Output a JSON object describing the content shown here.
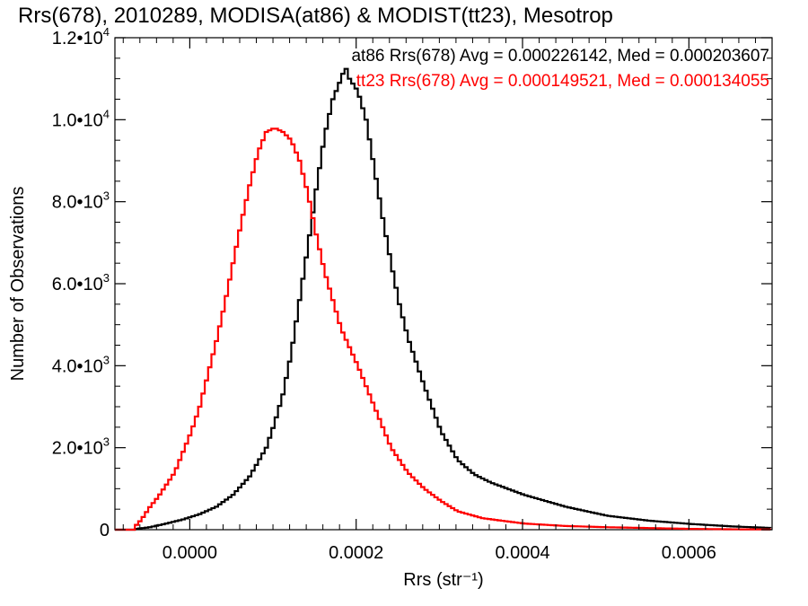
{
  "chart_data": {
    "type": "line",
    "step": true,
    "title": "Rrs(678), 2010289, MODISA(at86) & MODIST(tt23), Mesotrop",
    "xlabel": "Rrs (str⁻¹)",
    "ylabel": "Number of Observations",
    "xlim": [
      -9e-05,
      0.0007
    ],
    "ylim": [
      0,
      12000
    ],
    "xticks": [
      {
        "value": 0.0,
        "label": "0.0000"
      },
      {
        "value": 0.0002,
        "label": "0.0002"
      },
      {
        "value": 0.0004,
        "label": "0.0004"
      },
      {
        "value": 0.0006,
        "label": "0.0006"
      }
    ],
    "yticks": [
      {
        "value": 0,
        "mant": "0",
        "exp": ""
      },
      {
        "value": 2000,
        "mant": "2.0•10",
        "exp": "3"
      },
      {
        "value": 4000,
        "mant": "4.0•10",
        "exp": "3"
      },
      {
        "value": 6000,
        "mant": "6.0•10",
        "exp": "3"
      },
      {
        "value": 8000,
        "mant": "8.0•10",
        "exp": "3"
      },
      {
        "value": 10000,
        "mant": "1.0•10",
        "exp": "4"
      },
      {
        "value": 12000,
        "mant": "1.2•10",
        "exp": "4"
      }
    ],
    "legend": [
      {
        "text": "at86 Rrs(678) Avg = 0.000226142, Med = 0.000203607",
        "color": "#000000"
      },
      {
        "text": "tt23 Rrs(678) Avg = 0.000149521, Med = 0.000134055",
        "color": "#ff0000"
      }
    ],
    "legend_placement": "top-right",
    "grid": false,
    "series": [
      {
        "color": "#000000",
        "x": [
          -7e-05,
          -5e-05,
          -3e-05,
          -1e-05,
          1e-05,
          3e-05,
          5e-05,
          7e-05,
          9e-05,
          0.0001,
          0.00011,
          0.00012,
          0.00013,
          0.00014,
          0.00015,
          0.00016,
          0.00017,
          0.00018,
          0.000185,
          0.00019,
          0.0002,
          0.00021,
          0.00022,
          0.00023,
          0.00024,
          0.00025,
          0.00026,
          0.00028,
          0.0003,
          0.00032,
          0.00034,
          0.00036,
          0.0004,
          0.00045,
          0.0005,
          0.00055,
          0.0006,
          0.00065,
          0.0007
        ],
        "y": [
          10,
          60,
          150,
          250,
          380,
          560,
          850,
          1300,
          2000,
          2600,
          3300,
          4300,
          5600,
          6900,
          8300,
          9600,
          10500,
          11000,
          11300,
          11000,
          10700,
          10000,
          8800,
          7600,
          6500,
          5500,
          4700,
          3500,
          2400,
          1700,
          1350,
          1150,
          850,
          560,
          340,
          220,
          140,
          80,
          40
        ]
      },
      {
        "color": "#ff0000",
        "x": [
          -7e-05,
          -6e-05,
          -5e-05,
          -4e-05,
          -3e-05,
          -2e-05,
          -1e-05,
          0.0,
          1e-05,
          2e-05,
          3e-05,
          4e-05,
          5e-05,
          6e-05,
          7e-05,
          8e-05,
          9e-05,
          0.0001,
          0.00011,
          0.00012,
          0.00013,
          0.00014,
          0.00015,
          0.00016,
          0.00017,
          0.00018,
          0.0002,
          0.00022,
          0.00024,
          0.00026,
          0.00028,
          0.0003,
          0.00032,
          0.00035,
          0.0004,
          0.00045,
          0.0005,
          0.00055,
          0.0006,
          0.00065,
          0.0007
        ],
        "y": [
          30,
          250,
          550,
          800,
          1100,
          1400,
          1900,
          2400,
          3000,
          3800,
          4600,
          5500,
          6500,
          7500,
          8400,
          9200,
          9700,
          9800,
          9700,
          9500,
          9000,
          8200,
          7200,
          6300,
          5600,
          4900,
          4000,
          3000,
          2000,
          1400,
          1000,
          700,
          450,
          280,
          150,
          90,
          60,
          40,
          20,
          10,
          5
        ]
      }
    ]
  }
}
